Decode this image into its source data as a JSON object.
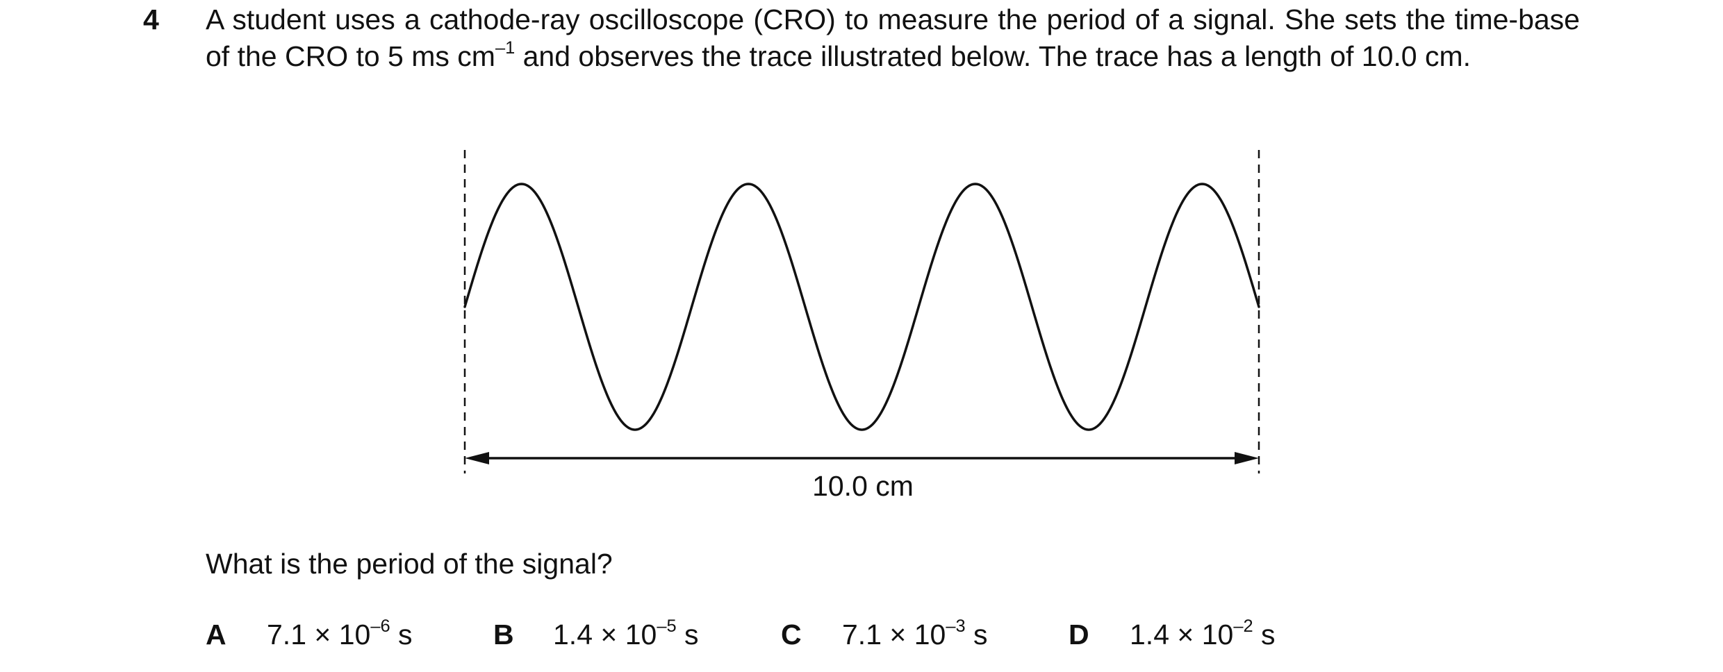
{
  "question": {
    "number": "4",
    "stem": {
      "part1": "A student uses a cathode-ray oscilloscope (CRO) to measure the period of a signal. She sets the time-base of the CRO to 5 ms cm",
      "exponent": "–1",
      "part2": " and observes the trace illustrated below. The trace has a length of 10.0 cm."
    },
    "figure": {
      "length_label": "10.0 cm",
      "cycles_shown": 3.5
    },
    "prompt": "What is the period of the signal?",
    "options": [
      {
        "letter": "A",
        "mantissa": "7.1 × 10",
        "exponent": "–6",
        "unit": "s"
      },
      {
        "letter": "B",
        "mantissa": "1.4 × 10",
        "exponent": "–5",
        "unit": "s"
      },
      {
        "letter": "C",
        "mantissa": "7.1 × 10",
        "exponent": "–3",
        "unit": "s"
      },
      {
        "letter": "D",
        "mantissa": "1.4 × 10",
        "exponent": "–2",
        "unit": "s"
      }
    ]
  }
}
